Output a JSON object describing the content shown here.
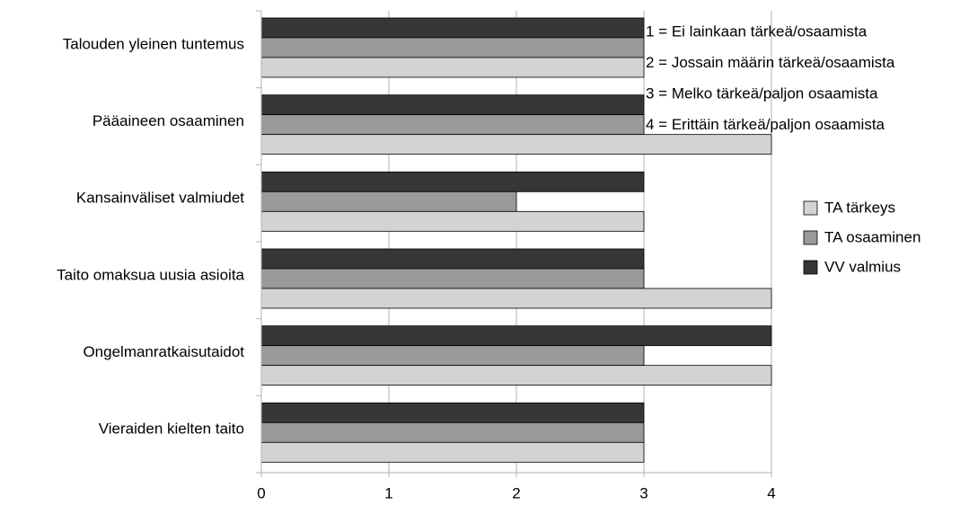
{
  "chart_data": {
    "type": "bar",
    "orientation": "horizontal",
    "categories": [
      "Talouden yleinen tuntemus",
      "Pääaineen osaaminen",
      "Kansainväliset valmiudet",
      "Taito omaksua uusia asioita",
      "Ongelmanratkaisutaidot",
      "Vieraiden kielten taito"
    ],
    "series": [
      {
        "name": "TA tärkeys",
        "color": "#d3d3d3",
        "values": [
          3,
          4,
          3,
          4,
          4,
          3
        ]
      },
      {
        "name": "TA osaaminen",
        "color": "#9a9a9a",
        "values": [
          3,
          3,
          2,
          3,
          3,
          3
        ]
      },
      {
        "name": "VV valmius",
        "color": "#363636",
        "values": [
          3,
          3,
          3,
          3,
          4,
          3
        ]
      }
    ],
    "xlim": [
      0,
      4
    ],
    "x_ticks": [
      "0",
      "1",
      "2",
      "3",
      "4"
    ],
    "grid": "vertical",
    "legend_position": "right",
    "annotations": [
      "1 = Ei lainkaan tärkeä/osaamista",
      "2 = Jossain määrin tärkeä/osaamista",
      "3 = Melko tärkeä/paljon osaamista",
      "4 = Erittäin tärkeä/paljon osaamista"
    ]
  }
}
